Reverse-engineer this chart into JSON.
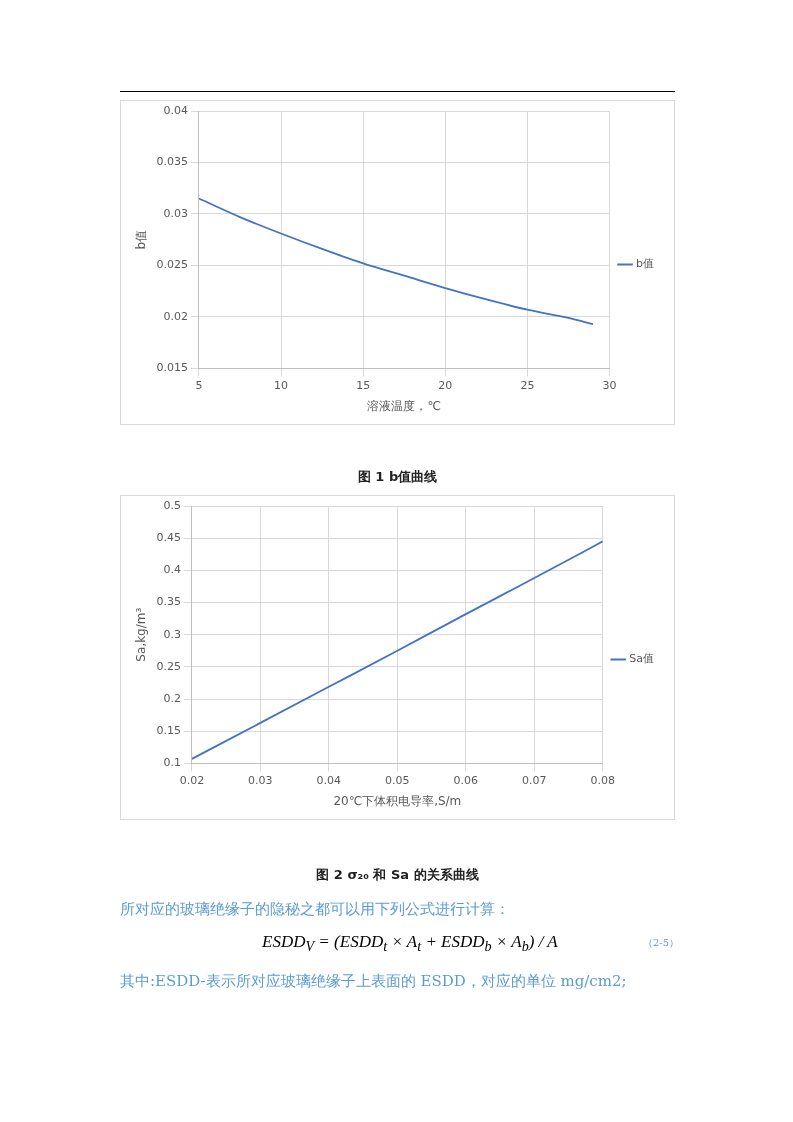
{
  "chart_data": [
    {
      "type": "line",
      "title": "图 1 b值曲线",
      "xlabel": "溶液温度，℃",
      "ylabel": "b值",
      "x": [
        5,
        7.5,
        10,
        12.5,
        15,
        17.5,
        20,
        22.5,
        25,
        27.5,
        29
      ],
      "series": [
        {
          "name": "b值",
          "color": "#4472c4",
          "values": [
            0.0315,
            0.0297,
            0.0281,
            0.0266,
            0.0252,
            0.024,
            0.0228,
            0.0217,
            0.0207,
            0.0199,
            0.0193
          ]
        }
      ],
      "xlim": [
        5,
        30
      ],
      "xticks": [
        5,
        10,
        15,
        20,
        25,
        30
      ],
      "ylim": [
        0.015,
        0.04
      ],
      "yticks": [
        0.015,
        0.02,
        0.025,
        0.03,
        0.035,
        0.04
      ],
      "grid": true,
      "legend": "right",
      "marker": "none",
      "line_style": "solid"
    },
    {
      "type": "line",
      "title": "图 2 σ₂₀ 和 Sa 的关系曲线",
      "xlabel": "20℃下体积电导率,S/m",
      "ylabel": "Sa,kg/m³",
      "x": [
        0.02,
        0.03,
        0.04,
        0.05,
        0.06,
        0.07,
        0.08
      ],
      "series": [
        {
          "name": "Sa值",
          "color": "#4472c4",
          "values": [
            0.107,
            0.163,
            0.219,
            0.275,
            0.332,
            0.388,
            0.445
          ]
        }
      ],
      "xlim": [
        0.02,
        0.08
      ],
      "xticks": [
        0.02,
        0.03,
        0.04,
        0.05,
        0.06,
        0.07,
        0.08
      ],
      "ylim": [
        0.1,
        0.5
      ],
      "yticks": [
        0.1,
        0.15,
        0.2,
        0.25,
        0.3,
        0.35,
        0.4,
        0.45,
        0.5
      ],
      "grid": true,
      "legend": "right",
      "marker": "none",
      "line_style": "solid",
      "annotations": [
        "所对应的玻璃绝缘子的隐秘之都可以用下列公式进行计算：",
        "ESDD$_{V}$ = (ESDD$_{t}$ × A$_{t}$ + ESDD$_{b}$ × A$_{b}$) / A",
        "（2-5）",
        "其中:ESDD-表示所对应玻璃绝缘子上表面的 ESDD，对应的单位 mg/cm2;"
      ]
    }
  ]
}
